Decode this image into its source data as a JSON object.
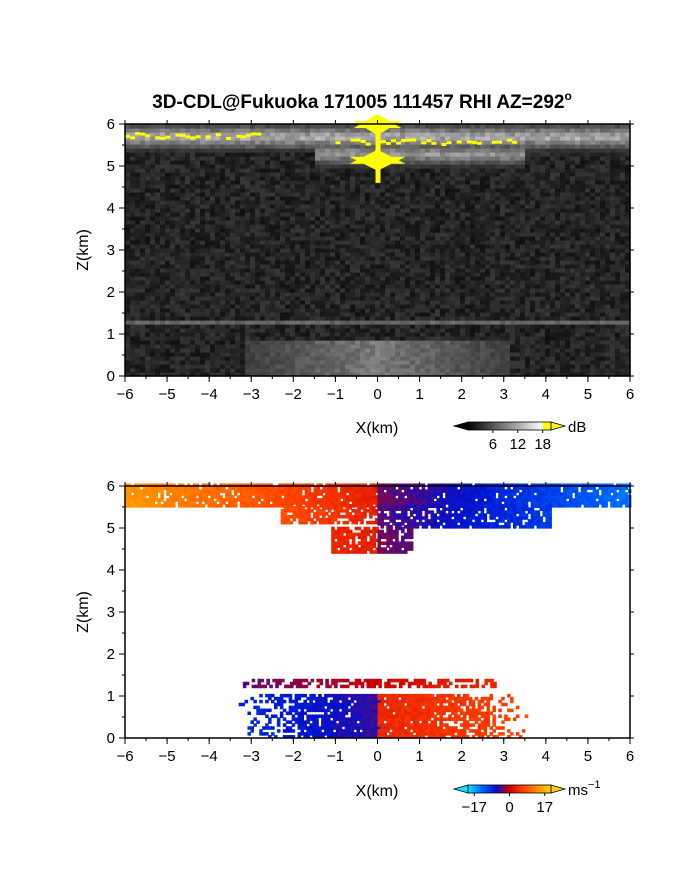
{
  "figure": {
    "title": "3D-CDL@Fukuoka 171005 111457 RHI AZ=292",
    "title_superscript": "o"
  },
  "chart_data": [
    {
      "type": "heatmap",
      "name": "reflectivity",
      "xlabel": "X(km)",
      "ylabel": "Z(km)",
      "xlim": [
        -6,
        6
      ],
      "ylim": [
        0,
        6
      ],
      "x_ticks": [
        -6,
        -5,
        -4,
        -3,
        -2,
        -1,
        0,
        1,
        2,
        3,
        4,
        5,
        6
      ],
      "y_ticks": [
        0,
        1,
        2,
        3,
        4,
        5,
        6
      ],
      "colorbar": {
        "unit": "dB",
        "ticks": [
          6,
          12,
          18
        ],
        "range": [
          0,
          20
        ],
        "colors": [
          "#000000",
          "#ffffff",
          "#ffff00"
        ]
      },
      "features": [
        {
          "type": "background_noise",
          "z_range": [
            0,
            6
          ],
          "level_db": 3
        },
        {
          "type": "cloud_layer",
          "z": 5.7,
          "x_range": [
            -6,
            6
          ],
          "level_db": 14
        },
        {
          "type": "cloud_layer",
          "z": 5.3,
          "x_range": [
            -1.5,
            3.5
          ],
          "level_db": 12
        },
        {
          "type": "boundary_layer",
          "z_range": [
            0,
            0.9
          ],
          "x_range": [
            -3,
            3
          ],
          "level_db": 9
        },
        {
          "type": "thin_layer",
          "z": 1.3,
          "x_range": [
            -6,
            6
          ],
          "level_db": 7
        },
        {
          "type": "saturated_band",
          "z": 5.7,
          "x_range": [
            -6,
            -2.8
          ],
          "level_db": 19
        },
        {
          "type": "saturated_band",
          "z": 5.55,
          "x_range": [
            -1,
            3.3
          ],
          "level_db": 19
        },
        {
          "type": "saturated_column",
          "x": 0,
          "z_range": [
            4.6,
            6
          ],
          "level_db": 20
        }
      ]
    },
    {
      "type": "heatmap",
      "name": "doppler_velocity",
      "xlabel": "X(km)",
      "ylabel": "Z(km)",
      "xlim": [
        -6,
        6
      ],
      "ylim": [
        0,
        6
      ],
      "x_ticks": [
        -6,
        -5,
        -4,
        -3,
        -2,
        -1,
        0,
        1,
        2,
        3,
        4,
        5,
        6
      ],
      "y_ticks": [
        0,
        1,
        2,
        3,
        4,
        5,
        6
      ],
      "colorbar": {
        "unit": "ms",
        "unit_superscript": "−1",
        "tick_labels": [
          "−17",
          "0",
          "17"
        ],
        "ticks": [
          -17,
          0,
          17
        ],
        "range": [
          -20,
          20
        ],
        "colors": [
          "#00e8ff",
          "#0066ff",
          "#0010d0",
          "#d00000",
          "#ff4000",
          "#ff9000",
          "#ffd000"
        ]
      },
      "regions": [
        {
          "name": "upper-left",
          "x_range": [
            -6,
            0
          ],
          "z_range": [
            5.5,
            6
          ],
          "velocity_ms": [
            14,
            3
          ]
        },
        {
          "name": "upper-right",
          "x_range": [
            0,
            6
          ],
          "z_range": [
            5.5,
            6
          ],
          "velocity_ms": [
            -3,
            -14
          ]
        },
        {
          "name": "mid-left",
          "x_range": [
            -2.3,
            0
          ],
          "z_range": [
            5.1,
            5.5
          ],
          "velocity_ms": [
            8,
            3
          ]
        },
        {
          "name": "mid-right",
          "x_range": [
            0,
            4.1
          ],
          "z_range": [
            5.0,
            5.5
          ],
          "velocity_ms": [
            -4,
            -10
          ]
        },
        {
          "name": "lower-left",
          "x_range": [
            -1.1,
            0
          ],
          "z_range": [
            4.4,
            5.0
          ],
          "velocity_ms": [
            4,
            3
          ]
        },
        {
          "name": "lower-right",
          "x_range": [
            0,
            0.8
          ],
          "z_range": [
            4.4,
            5.0
          ],
          "velocity_ms": [
            -3,
            -4
          ]
        },
        {
          "name": "bl-left",
          "x_range": [
            -3.3,
            0
          ],
          "z_range": [
            0,
            1.0
          ],
          "velocity_ms": [
            -9,
            -5
          ]
        },
        {
          "name": "bl-right",
          "x_range": [
            0,
            3.5
          ],
          "z_range": [
            0,
            1.0
          ],
          "velocity_ms": [
            4,
            7
          ]
        },
        {
          "name": "thin-layer",
          "x_range": [
            -3.2,
            2.8
          ],
          "z_range": [
            1.2,
            1.4
          ],
          "velocity_ms": [
            -4,
            4
          ]
        }
      ]
    }
  ]
}
